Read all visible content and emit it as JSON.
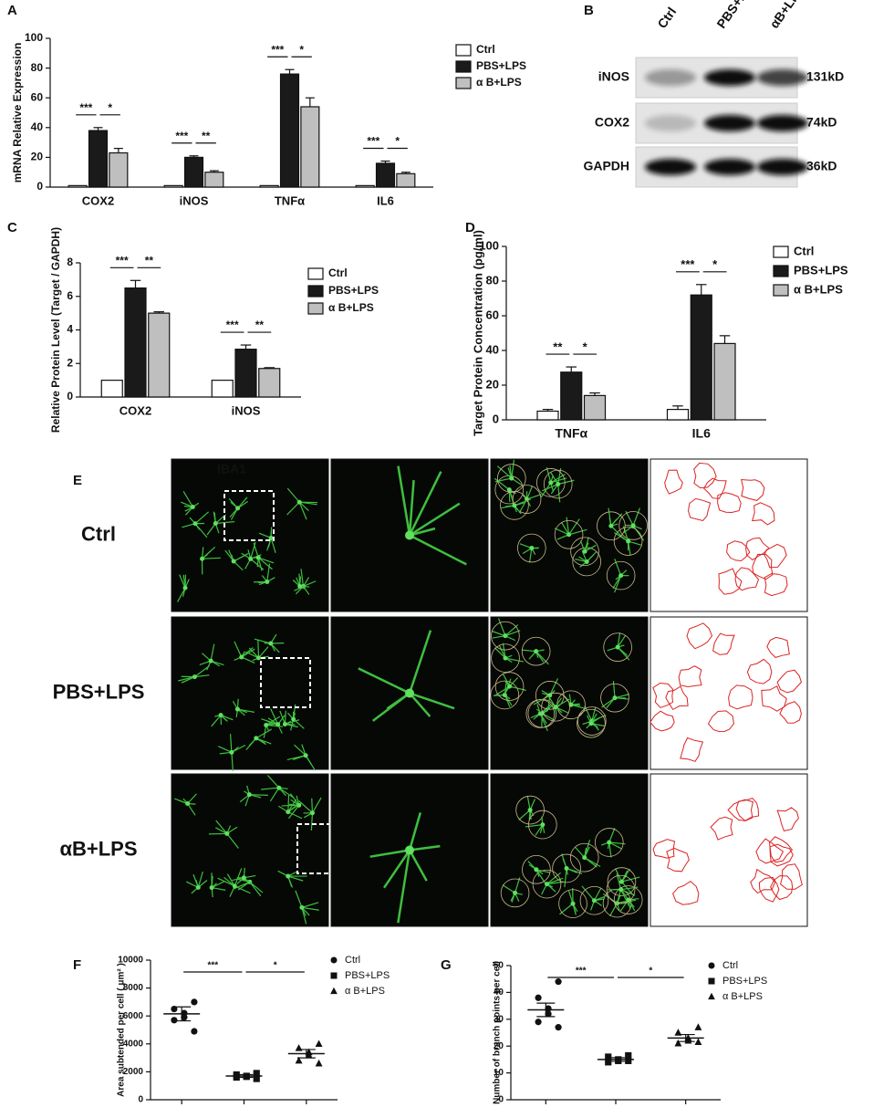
{
  "chart_data": [
    {
      "type": "bar",
      "panel": "A",
      "ylabel": "mRNA Relative Expression",
      "categories": [
        "COX2",
        "iNOS",
        "TNFα",
        "IL6"
      ],
      "series": [
        {
          "name": "Ctrl",
          "color": "#ffffff",
          "values": [
            1,
            1,
            1,
            1
          ],
          "errors": [
            0,
            0,
            0,
            0
          ]
        },
        {
          "name": "PBS+LPS",
          "color": "#1a1a1a",
          "values": [
            38,
            20,
            76,
            16
          ],
          "errors": [
            2,
            1,
            3,
            1.5
          ]
        },
        {
          "name": "α B+LPS",
          "color": "#bfbfbf",
          "values": [
            23,
            10,
            54,
            9
          ],
          "errors": [
            3,
            1,
            6,
            1
          ]
        }
      ],
      "significance": [
        [
          "***",
          "*"
        ],
        [
          "***",
          "**"
        ],
        [
          "***",
          "*"
        ],
        [
          "***",
          "*"
        ]
      ],
      "ylim": [
        0,
        100
      ],
      "yticks": [
        0,
        20,
        40,
        60,
        80,
        100
      ]
    },
    {
      "type": "bar",
      "panel": "C",
      "ylabel": "Relative Protein Level (Target / GAPDH)",
      "categories": [
        "COX2",
        "iNOS"
      ],
      "series": [
        {
          "name": "Ctrl",
          "color": "#ffffff",
          "values": [
            1,
            1
          ],
          "errors": [
            0,
            0
          ]
        },
        {
          "name": "PBS+LPS",
          "color": "#1a1a1a",
          "values": [
            6.5,
            2.85
          ],
          "errors": [
            0.45,
            0.25
          ]
        },
        {
          "name": "α B+LPS",
          "color": "#bfbfbf",
          "values": [
            5.0,
            1.7
          ],
          "errors": [
            0.08,
            0.05
          ]
        }
      ],
      "significance": [
        [
          "***",
          "**"
        ],
        [
          "***",
          "**"
        ]
      ],
      "ylim": [
        0,
        8
      ],
      "yticks": [
        0,
        2,
        4,
        6,
        8
      ]
    },
    {
      "type": "bar",
      "panel": "D",
      "ylabel": "Target Protein Concentration (pg/ml)",
      "categories": [
        "TNFα",
        "IL6"
      ],
      "series": [
        {
          "name": "Ctrl",
          "color": "#ffffff",
          "values": [
            5,
            6
          ],
          "errors": [
            1,
            2
          ]
        },
        {
          "name": "PBS+LPS",
          "color": "#1a1a1a",
          "values": [
            27.5,
            72
          ],
          "errors": [
            3,
            6
          ]
        },
        {
          "name": "α B+LPS",
          "color": "#bfbfbf",
          "values": [
            14,
            44
          ],
          "errors": [
            1.5,
            4.5
          ]
        }
      ],
      "significance": [
        [
          "**",
          "*"
        ],
        [
          "***",
          "*"
        ]
      ],
      "ylim": [
        0,
        100
      ],
      "yticks": [
        0,
        20,
        40,
        60,
        80,
        100
      ]
    },
    {
      "type": "scatter",
      "panel": "F",
      "ylabel": "Area subtended per cell ( μm² )",
      "series": [
        {
          "name": "Ctrl",
          "color": "#111111",
          "marker": "circle",
          "values": [
            7000,
            6500,
            6200,
            5900,
            5700,
            4900
          ],
          "mean": 6150,
          "error": 500
        },
        {
          "name": "PBS+LPS",
          "color": "#111111",
          "marker": "square",
          "values": [
            1900,
            1800,
            1700,
            1650,
            1600,
            1500
          ],
          "mean": 1700,
          "error": 100
        },
        {
          "name": "α B+LPS",
          "color": "#111111",
          "marker": "triangle",
          "values": [
            4000,
            3700,
            3400,
            3200,
            2800,
            2600
          ],
          "mean": 3300,
          "error": 300
        }
      ],
      "significance": [
        "***",
        "*"
      ],
      "ylim": [
        0,
        10000
      ],
      "yticks": [
        0,
        2000,
        4000,
        6000,
        8000,
        10000
      ]
    },
    {
      "type": "scatter",
      "panel": "G",
      "ylabel": "Number of branch points per cell",
      "series": [
        {
          "name": "Ctrl",
          "color": "#111111",
          "marker": "circle",
          "values": [
            44,
            38,
            34,
            32,
            29,
            27
          ],
          "mean": 33.5,
          "error": 2.5
        },
        {
          "name": "PBS+LPS",
          "color": "#111111",
          "marker": "square",
          "values": [
            16.5,
            16,
            15,
            14.5,
            14,
            14.5
          ],
          "mean": 15,
          "error": 0.7
        },
        {
          "name": "α B+LPS",
          "color": "#111111",
          "marker": "triangle",
          "values": [
            27,
            25,
            23,
            22,
            21,
            21.5
          ],
          "mean": 23,
          "error": 1.3
        }
      ],
      "significance": [
        "***",
        "*"
      ],
      "ylim": [
        0,
        50
      ],
      "yticks": [
        0,
        10,
        20,
        30,
        40,
        50
      ]
    }
  ],
  "blot": {
    "panel": "B",
    "lanes": [
      "Ctrl",
      "PBS+LPS",
      "αB+LPS"
    ],
    "rows": [
      {
        "protein": "iNOS",
        "size": "131kD"
      },
      {
        "protein": "COX2",
        "size": "74kD"
      },
      {
        "protein": "GAPDH",
        "size": "36kD"
      }
    ]
  },
  "images": {
    "panel": "E",
    "stain": "IBA1",
    "rows": [
      "Ctrl",
      "PBS+LPS",
      "αB+LPS"
    ]
  }
}
